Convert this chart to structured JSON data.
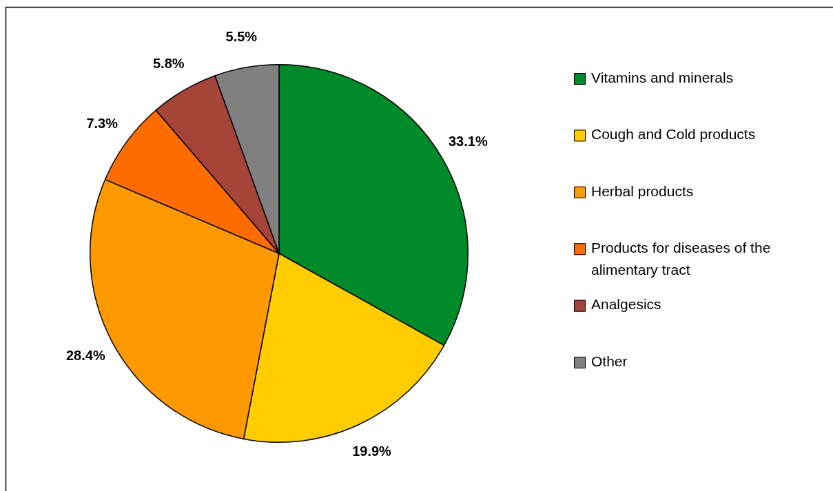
{
  "chart_data": {
    "type": "pie",
    "categories": [
      "Vitamins and minerals",
      "Cough and Cold products",
      "Herbal products",
      "Products for diseases of the alimentary tract",
      "Analgesics",
      "Other"
    ],
    "values": [
      33.1,
      19.9,
      28.4,
      7.3,
      5.8,
      5.5
    ],
    "colors": [
      "#008a29",
      "#ffcc00",
      "#ff9900",
      "#ff6d00",
      "#a5453a",
      "#808080"
    ],
    "value_labels": [
      "33.1%",
      "19.9%",
      "28.4%",
      "7.3%",
      "5.8%",
      "5.5%"
    ],
    "legend": "right"
  }
}
